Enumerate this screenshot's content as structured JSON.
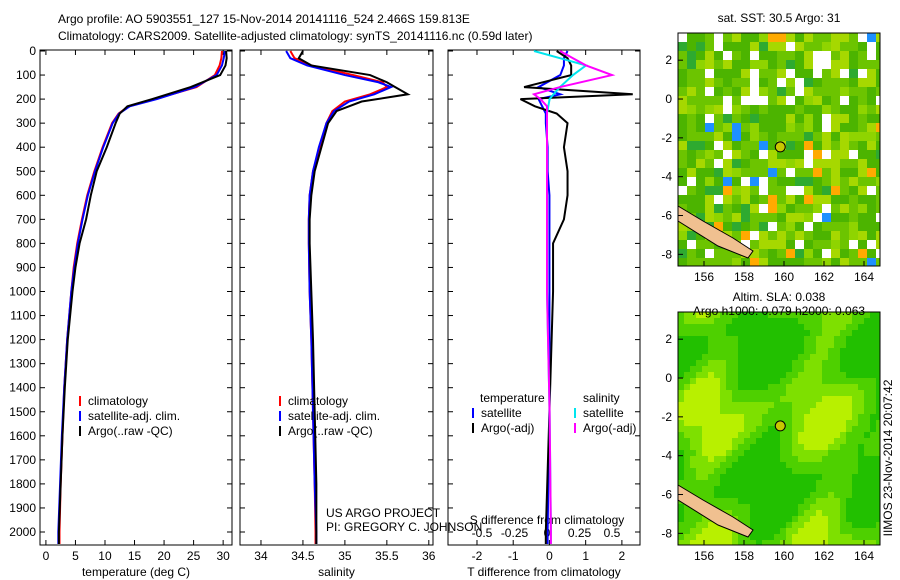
{
  "title": {
    "line1": "Argo profile: AO 5903551_127 15-Nov-2014 20141116_524 2.466S 159.813E",
    "line2": "Climatology: CARS2009. Satellite-adjusted climatology: synTS_20141116.nc (0.59d later)"
  },
  "credit": {
    "line1": "US ARGO PROJECT",
    "line2": "PI: GREGORY C. JOHNSON"
  },
  "stamp": "IIMOS 23-Nov-2014 20:07:42",
  "colors": {
    "climatology": "#ff0000",
    "satellite": "#0000ff",
    "argo": "#000000",
    "sat_s": "#00e5ee",
    "argo_s": "#ff00ff"
  },
  "chart_data": [
    {
      "type": "line",
      "xlabel": "temperature (deg C)",
      "ylabel": "",
      "xlim": [
        -1,
        31.5
      ],
      "ylim": [
        2050,
        0
      ],
      "xticks": [
        0,
        5,
        10,
        15,
        20,
        25,
        30
      ],
      "yticks": [
        0,
        100,
        200,
        300,
        400,
        500,
        600,
        700,
        800,
        900,
        1000,
        1100,
        1200,
        1300,
        1400,
        1500,
        1600,
        1700,
        1800,
        1900,
        2000
      ],
      "legend": [
        "climatology",
        "satellite-adj. clim.",
        "Argo(..raw -QC)"
      ],
      "depth": [
        0,
        30,
        60,
        100,
        150,
        200,
        230,
        260,
        300,
        400,
        500,
        600,
        700,
        800,
        900,
        1000,
        1200,
        1400,
        1600,
        1800,
        2000,
        2050
      ],
      "series": [
        {
          "name": "climatology",
          "values": [
            29.8,
            29.7,
            29.4,
            28.6,
            25.5,
            18.5,
            14,
            12.3,
            11.2,
            9.6,
            8.2,
            7,
            6.1,
            5.3,
            4.7,
            4.3,
            3.6,
            3.1,
            2.8,
            2.5,
            2.3,
            2.3
          ]
        },
        {
          "name": "satellite-adj. clim.",
          "values": [
            30.3,
            30.1,
            29.8,
            28.9,
            25.2,
            18.8,
            14.2,
            12.4,
            11.3,
            9.7,
            8.3,
            7.1,
            6.2,
            5.4,
            4.8,
            4.3,
            3.6,
            3.1,
            2.7,
            2.4,
            2.1,
            2.1
          ]
        },
        {
          "name": "Argo(..raw -QC)",
          "values": [
            30.5,
            30.6,
            30.4,
            29.5,
            24.5,
            18,
            13.8,
            12.5,
            11.8,
            10.3,
            8.6,
            7.6,
            6.8,
            5.7,
            5,
            4.5,
            3.7,
            3.2,
            2.8,
            2.5,
            2.2,
            2.2
          ]
        }
      ]
    },
    {
      "type": "line",
      "xlabel": "salinity",
      "xlim": [
        33.75,
        36.05
      ],
      "ylim": [
        2050,
        0
      ],
      "xticks": [
        34,
        34.5,
        35,
        35.5,
        36
      ],
      "legend": [
        "climatology",
        "satellite-adj. clim.",
        "Argo(..raw -QC)"
      ],
      "depth": [
        0,
        30,
        60,
        100,
        130,
        150,
        180,
        210,
        250,
        300,
        400,
        500,
        600,
        700,
        800,
        1000,
        1200,
        1500,
        1800,
        2000,
        2050
      ],
      "series": [
        {
          "name": "climatology",
          "values": [
            34.35,
            34.4,
            34.6,
            35.1,
            35.45,
            35.5,
            35.3,
            35,
            34.85,
            34.78,
            34.7,
            34.62,
            34.58,
            34.57,
            34.57,
            34.58,
            34.6,
            34.62,
            34.64,
            34.65,
            34.65
          ]
        },
        {
          "name": "satellite-adj. clim.",
          "values": [
            34.3,
            34.35,
            34.55,
            35.0,
            35.4,
            35.55,
            35.35,
            35.05,
            34.87,
            34.78,
            34.69,
            34.62,
            34.58,
            34.57,
            34.57,
            34.58,
            34.6,
            34.62,
            34.64,
            34.66,
            34.66
          ]
        },
        {
          "name": "Argo(..raw -QC)",
          "values": [
            34.5,
            34.45,
            34.6,
            35.3,
            35.5,
            35.6,
            35.75,
            35.2,
            34.9,
            34.8,
            34.72,
            34.64,
            34.6,
            34.58,
            34.58,
            34.6,
            34.62,
            34.64,
            34.66,
            34.66,
            34.66
          ]
        }
      ]
    },
    {
      "type": "line",
      "xlabel": "T difference from climatology",
      "x2label": "S difference from climatology",
      "xlim": [
        -2.8,
        2.5
      ],
      "xticks": [
        -2,
        -1,
        0,
        1,
        2
      ],
      "x2ticks": [
        -0.5,
        -0.25,
        0,
        0.25,
        0.5
      ],
      "ylim": [
        2050,
        0
      ],
      "legend_titles": [
        "temperature",
        "salinity"
      ],
      "legend": [
        "satellite",
        "Argo(-adj)",
        "satellite",
        "Argo(-adj)"
      ],
      "depth": [
        0,
        30,
        60,
        100,
        150,
        180,
        200,
        230,
        260,
        300,
        400,
        500,
        600,
        700,
        800,
        1000,
        1500,
        2000,
        2050
      ],
      "series": [
        {
          "name": "T satellite",
          "values": [
            0.5,
            0.4,
            0.4,
            0.3,
            -0.3,
            0.3,
            -0.3,
            -0.2,
            -0.1,
            -0.1,
            -0.05,
            -0.05,
            0,
            0,
            0,
            0,
            0,
            -0.05,
            -0.05
          ]
        },
        {
          "name": "T Argo(-adj)",
          "values": [
            0.2,
            0.5,
            0.6,
            0.6,
            -0.7,
            2.3,
            -0.8,
            -0.4,
            0.2,
            0.5,
            0.4,
            0.5,
            0.5,
            0.4,
            0.1,
            0.1,
            0,
            -0.1,
            -0.1
          ]
        },
        {
          "name": "S satellite",
          "values": [
            -0.1,
            0.1,
            0.3,
            0.2,
            0.1,
            0.05,
            0.02,
            0.01,
            0,
            0,
            0,
            0,
            0,
            0,
            0,
            0,
            0.02,
            0.03,
            0.03
          ]
        },
        {
          "name": "S Argo(-adj)",
          "values": [
            0.1,
            0.2,
            0.3,
            0.5,
            0.1,
            -0.1,
            -0.05,
            0,
            0,
            0,
            0,
            0,
            0,
            0,
            0,
            0,
            0.02,
            0.03,
            0.03
          ]
        }
      ]
    },
    {
      "type": "heatmap",
      "title": "sat. SST: 30.5 Argo: 31",
      "xticks": [
        156,
        158,
        160,
        162,
        164
      ],
      "yticks": [
        2,
        0,
        -2,
        -4,
        -6,
        -8
      ],
      "xlim": [
        154.7,
        164.8
      ],
      "ylim": [
        -8.6,
        3.4
      ],
      "marker": [
        159.813,
        -2.466
      ]
    },
    {
      "type": "heatmap",
      "title": "Altim. SLA: 0.038",
      "subtitle": "Argo h1000: 0.079 h2000: 0.063",
      "xticks": [
        156,
        158,
        160,
        162,
        164
      ],
      "yticks": [
        2,
        0,
        -2,
        -4,
        -6,
        -8
      ],
      "xlim": [
        154.7,
        164.8
      ],
      "ylim": [
        -8.6,
        3.4
      ],
      "marker": [
        159.813,
        -2.466
      ]
    }
  ]
}
